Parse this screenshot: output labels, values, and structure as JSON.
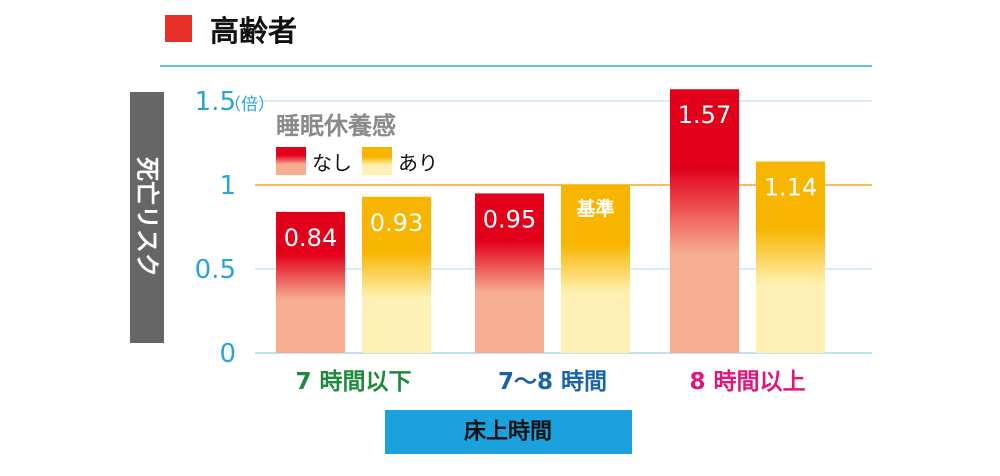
{
  "chart_data": {
    "type": "bar",
    "title": "高齢者",
    "ylabel": "死亡リスク",
    "yunit": "（倍）",
    "xlabel": "床上時間",
    "ylim": [
      0,
      1.6
    ],
    "yticks": [
      {
        "value": 0,
        "label": "0"
      },
      {
        "value": 0.5,
        "label": "0.5"
      },
      {
        "value": 1,
        "label": "1"
      },
      {
        "value": 1.5,
        "label": "1.5"
      }
    ],
    "reference_line": 1,
    "legend_title": "睡眠休養感",
    "categories": [
      "7 時間以下",
      "7〜8 時間",
      "8 時間以上"
    ],
    "category_colors": [
      "#1e8a3c",
      "#1b63a8",
      "#e0177a"
    ],
    "series": [
      {
        "name": "なし",
        "values": [
          0.84,
          0.95,
          1.57
        ],
        "labels": [
          "0.84",
          "0.95",
          "1.57"
        ]
      },
      {
        "name": "あり",
        "values": [
          0.93,
          1.0,
          1.14
        ],
        "labels": [
          "0.93",
          "基準",
          "1.14"
        ]
      }
    ],
    "colors": {
      "title_square": "#e63027",
      "nashi_top": "#e3001b",
      "nashi_bottom": "#f6ad90",
      "ari_top": "#f7b500",
      "ari_bottom": "#fff1b5",
      "grid": "#a9dcef",
      "header_rule": "#39a9dc",
      "reference": "#f5a623",
      "axis_tick": "#2aa3dc",
      "ylabel_box": "#666666",
      "xlabel_box": "#1aa1de"
    }
  }
}
